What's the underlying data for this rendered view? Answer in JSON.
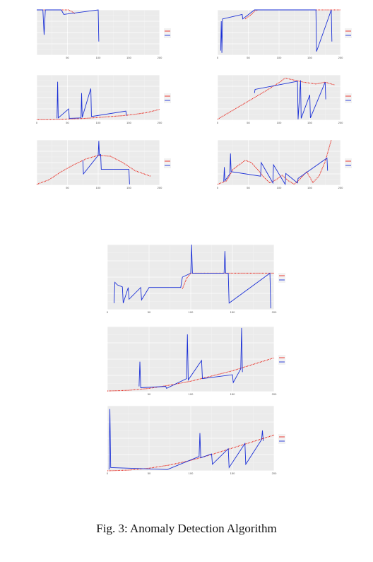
{
  "caption": "Fig. 3: Anomaly Detection Algorithm",
  "colors": {
    "forecast": "#e8261c",
    "original": "#1a2fd6",
    "panel_bg": "#ebebeb"
  },
  "chart_data": [
    {
      "type": "line",
      "panel": "top-left",
      "xlim": [
        0,
        200
      ],
      "ylim": [
        0,
        1
      ],
      "xticks": [
        50,
        100,
        150,
        200
      ],
      "yticks": [],
      "legend_placement": "right",
      "grid": true,
      "forecast": [
        [
          0,
          1
        ],
        [
          48,
          1
        ],
        [
          52,
          1
        ],
        [
          56,
          0.97
        ],
        [
          62,
          0.92
        ]
      ],
      "original": [
        [
          0,
          1
        ],
        [
          10,
          1
        ],
        [
          12,
          0.45
        ],
        [
          14,
          1
        ],
        [
          40,
          1
        ],
        [
          44,
          0.9
        ],
        [
          100,
          1
        ],
        [
          101,
          0.3
        ]
      ]
    },
    {
      "type": "line",
      "panel": "top-right",
      "xlim": [
        0,
        200
      ],
      "ylim": [
        0,
        1
      ],
      "xticks": [
        0,
        50,
        100,
        150,
        200
      ],
      "yticks": [],
      "legend_placement": "right",
      "grid": true,
      "forecast": [
        [
          45,
          0.8
        ],
        [
          55,
          0.9
        ],
        [
          60,
          0.97
        ],
        [
          65,
          1
        ],
        [
          200,
          1
        ]
      ],
      "original": [
        [
          5,
          0.1
        ],
        [
          6,
          0.75
        ],
        [
          7,
          0.05
        ],
        [
          8,
          0.8
        ],
        [
          40,
          0.9
        ],
        [
          41,
          0.8
        ],
        [
          60,
          1
        ],
        [
          75,
          1
        ],
        [
          160,
          1
        ],
        [
          161,
          0.08
        ],
        [
          185,
          1
        ],
        [
          186,
          0.3
        ]
      ]
    },
    {
      "type": "line",
      "panel": "middle-left",
      "xlim": [
        0,
        200
      ],
      "ylim": [
        0,
        1
      ],
      "xticks": [
        0,
        50,
        100,
        150,
        200
      ],
      "yticks": [],
      "legend_placement": "right",
      "grid": true,
      "forecast": [
        [
          0,
          0.01
        ],
        [
          20,
          0.01
        ],
        [
          40,
          0.02
        ],
        [
          60,
          0.03
        ],
        [
          80,
          0.04
        ],
        [
          100,
          0.06
        ],
        [
          120,
          0.08
        ],
        [
          140,
          0.1
        ],
        [
          160,
          0.13
        ],
        [
          180,
          0.17
        ],
        [
          200,
          0.24
        ]
      ],
      "original": [
        [
          33,
          0.04
        ],
        [
          34,
          0.85
        ],
        [
          35,
          0.05
        ],
        [
          52,
          0.25
        ],
        [
          53,
          0.04
        ],
        [
          72,
          0.05
        ],
        [
          73,
          0.6
        ],
        [
          74,
          0.06
        ],
        [
          88,
          0.7
        ],
        [
          89,
          0.08
        ],
        [
          145,
          0.2
        ],
        [
          146,
          0.1
        ]
      ]
    },
    {
      "type": "line",
      "panel": "middle-right",
      "xlim": [
        0,
        200
      ],
      "ylim": [
        0,
        1
      ],
      "xticks": [
        0,
        50,
        100,
        150,
        200
      ],
      "yticks": [],
      "legend_placement": "right",
      "grid": true,
      "forecast": [
        [
          0,
          0.02
        ],
        [
          20,
          0.18
        ],
        [
          40,
          0.34
        ],
        [
          60,
          0.5
        ],
        [
          80,
          0.66
        ],
        [
          100,
          0.83
        ],
        [
          110,
          0.93
        ],
        [
          120,
          0.9
        ],
        [
          140,
          0.84
        ],
        [
          160,
          0.8
        ],
        [
          175,
          0.84
        ],
        [
          190,
          0.78
        ]
      ],
      "original": [
        [
          60,
          0.6
        ],
        [
          61,
          0.68
        ],
        [
          130,
          0.86
        ],
        [
          131,
          0.02
        ],
        [
          135,
          0.88
        ],
        [
          136,
          0.04
        ],
        [
          150,
          0.56
        ],
        [
          151,
          0.05
        ],
        [
          175,
          0.84
        ],
        [
          176,
          0.46
        ]
      ]
    },
    {
      "type": "line",
      "panel": "bottom-left",
      "xlim": [
        0,
        200
      ],
      "ylim": [
        0,
        1
      ],
      "xticks": [
        50,
        100,
        150,
        200
      ],
      "yticks": [],
      "legend_placement": "right",
      "grid": true,
      "forecast": [
        [
          0,
          0.02
        ],
        [
          20,
          0.12
        ],
        [
          40,
          0.3
        ],
        [
          60,
          0.45
        ],
        [
          80,
          0.58
        ],
        [
          100,
          0.66
        ],
        [
          120,
          0.64
        ],
        [
          140,
          0.5
        ],
        [
          160,
          0.32
        ],
        [
          185,
          0.2
        ]
      ],
      "original": [
        [
          75,
          0.55
        ],
        [
          76,
          0.25
        ],
        [
          100,
          0.66
        ],
        [
          101,
          0.98
        ],
        [
          102,
          0.66
        ],
        [
          104,
          0.68
        ],
        [
          105,
          0.35
        ],
        [
          150,
          0.35
        ],
        [
          151,
          0.02
        ]
      ]
    },
    {
      "type": "line",
      "panel": "bottom-right",
      "xlim": [
        0,
        200
      ],
      "ylim": [
        0,
        1
      ],
      "xticks": [
        0,
        50,
        100,
        150,
        200
      ],
      "yticks": [],
      "legend_placement": "right",
      "grid": true,
      "forecast": [
        [
          0,
          0.02
        ],
        [
          15,
          0.1
        ],
        [
          25,
          0.35
        ],
        [
          35,
          0.45
        ],
        [
          45,
          0.55
        ],
        [
          55,
          0.5
        ],
        [
          65,
          0.35
        ],
        [
          75,
          0.18
        ],
        [
          85,
          0.05
        ],
        [
          95,
          0.12
        ],
        [
          105,
          0.22
        ],
        [
          115,
          0.1
        ],
        [
          125,
          0.02
        ],
        [
          135,
          0.15
        ],
        [
          145,
          0.3
        ],
        [
          155,
          0.06
        ],
        [
          165,
          0.2
        ],
        [
          175,
          0.52
        ],
        [
          185,
          1
        ]
      ],
      "original": [
        [
          10,
          0.08
        ],
        [
          11,
          0.4
        ],
        [
          12,
          0.1
        ],
        [
          20,
          0.25
        ],
        [
          21,
          0.7
        ],
        [
          22,
          0.3
        ],
        [
          70,
          0.2
        ],
        [
          71,
          0.5
        ],
        [
          90,
          0.05
        ],
        [
          91,
          0.45
        ],
        [
          110,
          0.02
        ],
        [
          111,
          0.26
        ],
        [
          130,
          0.05
        ],
        [
          131,
          0.15
        ],
        [
          178,
          0.6
        ],
        [
          179,
          0.32
        ]
      ]
    },
    {
      "type": "line",
      "panel": "lower-1",
      "xlim": [
        0,
        200
      ],
      "ylim": [
        0,
        1
      ],
      "xticks": [
        0,
        50,
        100,
        150,
        200
      ],
      "yticks": [],
      "legend_placement": "right",
      "grid": true,
      "forecast": [
        [
          90,
          0.32
        ],
        [
          95,
          0.48
        ],
        [
          100,
          0.56
        ],
        [
          200,
          0.56
        ]
      ],
      "original": [
        [
          8,
          0.1
        ],
        [
          9,
          0.42
        ],
        [
          12,
          0.38
        ],
        [
          18,
          0.35
        ],
        [
          19,
          0.1
        ],
        [
          25,
          0.34
        ],
        [
          26,
          0.16
        ],
        [
          40,
          0.34
        ],
        [
          41,
          0.15
        ],
        [
          50,
          0.34
        ],
        [
          88,
          0.34
        ],
        [
          90,
          0.5
        ],
        [
          100,
          0.56
        ],
        [
          101,
          1
        ],
        [
          102,
          0.56
        ],
        [
          140,
          0.56
        ],
        [
          141,
          0.9
        ],
        [
          142,
          0.56
        ],
        [
          145,
          0.56
        ],
        [
          146,
          0.1
        ],
        [
          195,
          0.56
        ],
        [
          196,
          0.02
        ]
      ]
    },
    {
      "type": "line",
      "panel": "lower-2",
      "xlim": [
        0,
        200
      ],
      "ylim": [
        0,
        1
      ],
      "xticks": [
        50,
        100,
        150,
        200
      ],
      "yticks": [],
      "legend_placement": "right",
      "grid": true,
      "forecast": [
        [
          0,
          0.01
        ],
        [
          25,
          0.02
        ],
        [
          50,
          0.05
        ],
        [
          75,
          0.1
        ],
        [
          100,
          0.16
        ],
        [
          125,
          0.24
        ],
        [
          150,
          0.32
        ],
        [
          175,
          0.42
        ],
        [
          200,
          0.52
        ]
      ],
      "original": [
        [
          38,
          0.08
        ],
        [
          39,
          0.46
        ],
        [
          40,
          0.06
        ],
        [
          70,
          0.08
        ],
        [
          71,
          0.05
        ],
        [
          95,
          0.2
        ],
        [
          96,
          0.88
        ],
        [
          97,
          0.18
        ],
        [
          113,
          0.48
        ],
        [
          114,
          0.2
        ],
        [
          150,
          0.26
        ],
        [
          151,
          0.14
        ],
        [
          160,
          0.35
        ],
        [
          161,
          0.98
        ],
        [
          162,
          0.3
        ]
      ]
    },
    {
      "type": "line",
      "panel": "lower-3",
      "xlim": [
        0,
        200
      ],
      "ylim": [
        0,
        1
      ],
      "xticks": [
        0,
        50,
        100,
        150,
        200
      ],
      "yticks": [],
      "legend_placement": "right",
      "grid": true,
      "forecast": [
        [
          0,
          0
        ],
        [
          25,
          0.01
        ],
        [
          50,
          0.04
        ],
        [
          75,
          0.09
        ],
        [
          100,
          0.16
        ],
        [
          125,
          0.25
        ],
        [
          150,
          0.35
        ],
        [
          175,
          0.45
        ],
        [
          200,
          0.55
        ]
      ],
      "original": [
        [
          2,
          0.02
        ],
        [
          3,
          0.95
        ],
        [
          4,
          0.05
        ],
        [
          72,
          0.02
        ],
        [
          110,
          0.22
        ],
        [
          111,
          0.58
        ],
        [
          112,
          0.2
        ],
        [
          125,
          0.26
        ],
        [
          126,
          0.1
        ],
        [
          145,
          0.34
        ],
        [
          146,
          0.05
        ],
        [
          165,
          0.42
        ],
        [
          166,
          0.1
        ],
        [
          185,
          0.48
        ],
        [
          186,
          0.62
        ],
        [
          187,
          0.46
        ]
      ]
    }
  ]
}
